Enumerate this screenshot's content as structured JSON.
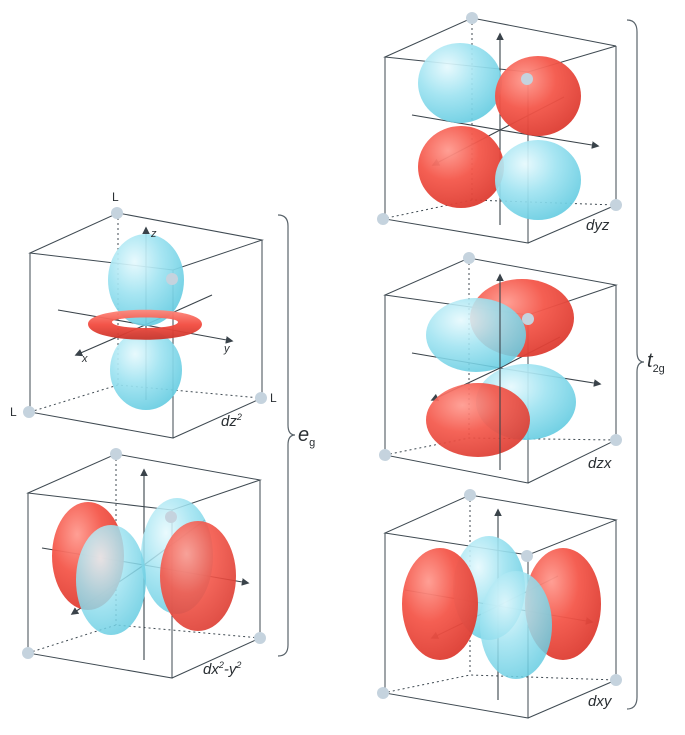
{
  "orbitals": {
    "dz2": {
      "label_base": "dz",
      "label_sup": "2"
    },
    "dx2y2": {
      "label_a": "dx",
      "label_sup1": "2",
      "label_b": "-y",
      "label_sup2": "2"
    },
    "dyz": {
      "label": "dyz"
    },
    "dzx": {
      "label": "dzx"
    },
    "dxy": {
      "label": "dxy"
    }
  },
  "axes": {
    "z": "z",
    "y": "y",
    "x": "x"
  },
  "ligand": "L",
  "groups": {
    "eg": {
      "main": "e",
      "sub": "g"
    },
    "t2g": {
      "main": "t",
      "sub": "2g"
    }
  },
  "colors": {
    "positive_lobe": "#f04a3e",
    "negative_lobe": "#7fd9ea",
    "cube_edge": "#3f4a52",
    "vertex": "#c5d3de"
  }
}
